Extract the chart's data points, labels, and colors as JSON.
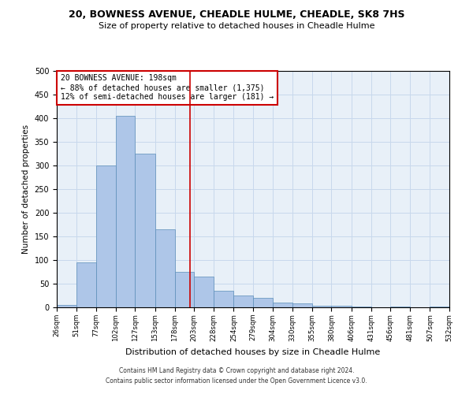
{
  "title1": "20, BOWNESS AVENUE, CHEADLE HULME, CHEADLE, SK8 7HS",
  "title2": "Size of property relative to detached houses in Cheadle Hulme",
  "xlabel": "Distribution of detached houses by size in Cheadle Hulme",
  "ylabel": "Number of detached properties",
  "property_size": 198,
  "annotation_line1": "20 BOWNESS AVENUE: 198sqm",
  "annotation_line2": "← 88% of detached houses are smaller (1,375)",
  "annotation_line3": "12% of semi-detached houses are larger (181) →",
  "bin_edges": [
    26,
    51,
    77,
    102,
    127,
    153,
    178,
    203,
    228,
    254,
    279,
    304,
    330,
    355,
    380,
    406,
    431,
    456,
    481,
    507,
    532
  ],
  "bar_heights": [
    5,
    95,
    300,
    405,
    325,
    165,
    75,
    65,
    35,
    25,
    20,
    10,
    8,
    3,
    3,
    2,
    0,
    2,
    0,
    2
  ],
  "bar_color": "#AEC6E8",
  "bar_edge_color": "#5B8DB8",
  "vline_color": "#CC0000",
  "annotation_box_color": "#CC0000",
  "grid_color": "#C8D8EC",
  "background_color": "#E8F0F8",
  "footer_line1": "Contains HM Land Registry data © Crown copyright and database right 2024.",
  "footer_line2": "Contains public sector information licensed under the Open Government Licence v3.0.",
  "ylim": [
    0,
    500
  ],
  "yticks": [
    0,
    50,
    100,
    150,
    200,
    250,
    300,
    350,
    400,
    450,
    500
  ]
}
